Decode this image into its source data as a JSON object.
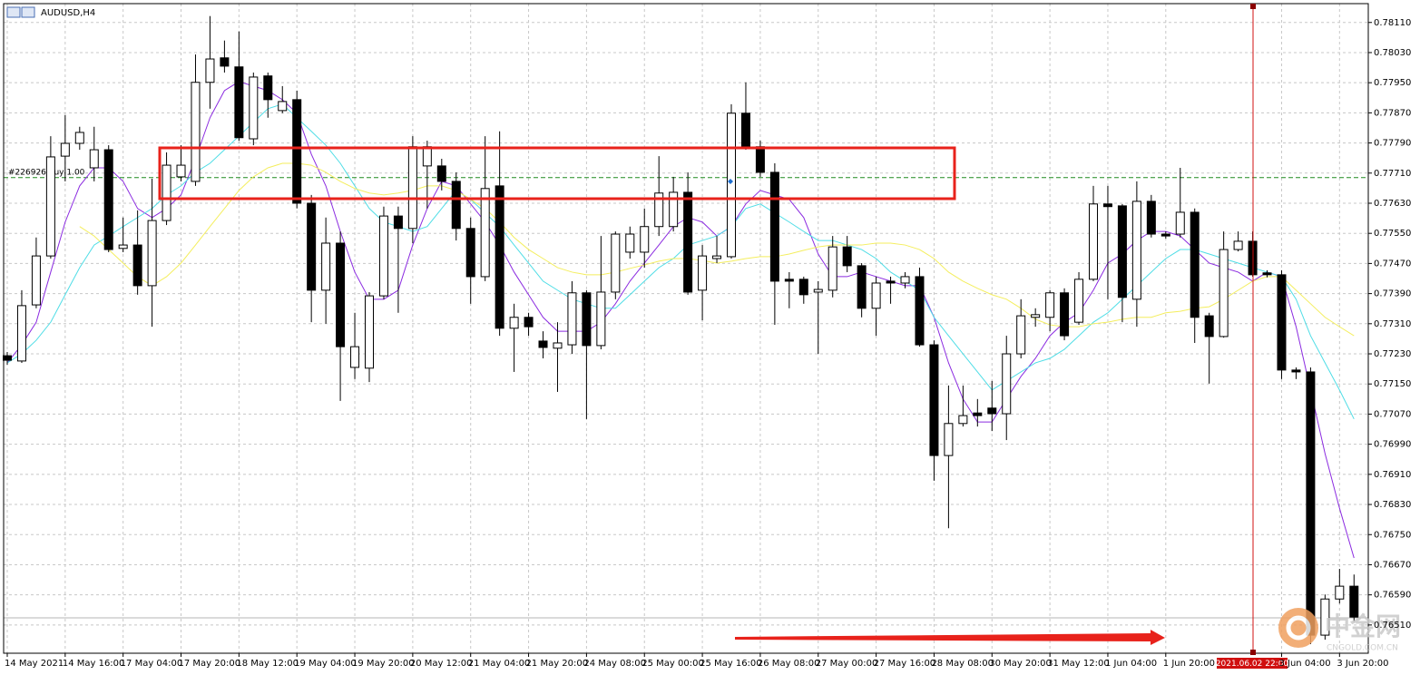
{
  "chart_data": {
    "type": "candlestick",
    "title": "AUDUSD,H4",
    "categories": [
      "14 May 2021",
      null,
      null,
      null,
      "14 May 16:00",
      null,
      null,
      null,
      "17 May 04:00",
      null,
      null,
      null,
      "17 May 20:00",
      null,
      null,
      null,
      "18 May 12:00",
      null,
      null,
      null,
      "19 May 04:00",
      null,
      null,
      null,
      "19 May 20:00",
      null,
      null,
      null,
      "20 May 12:00",
      null,
      null,
      null,
      "21 May 04:00",
      null,
      null,
      null,
      "21 May 20:00",
      null,
      null,
      null,
      "24 May 08:00",
      null,
      null,
      null,
      "25 May 00:00",
      null,
      null,
      null,
      "25 May 16:00",
      null,
      null,
      null,
      "26 May 08:00",
      null,
      null,
      null,
      "27 May 00:00",
      null,
      null,
      null,
      "27 May 16:00",
      null,
      null,
      null,
      "28 May 08:00",
      null,
      null,
      null,
      "30 May 20:00",
      null,
      null,
      null,
      "31 May 12:00",
      null,
      null,
      null,
      "1 Jun 04:00",
      null,
      null,
      null,
      "1 Jun 20:00",
      null,
      null,
      null,
      null,
      null,
      null,
      null,
      "3 Jun 04:00",
      null,
      null,
      null,
      "3 Jun 20:00",
      null
    ],
    "open": [
      0.77225,
      0.77211,
      0.7736,
      0.7749,
      0.77755,
      0.77789,
      0.77724,
      0.77772,
      0.7751,
      0.77519,
      0.77411,
      0.77584,
      0.777,
      0.77688,
      0.77951,
      0.78016,
      0.77992,
      0.77801,
      0.77968,
      0.77876,
      0.77905,
      0.7763,
      0.77399,
      0.77524,
      0.77194,
      0.77192,
      0.77384,
      0.77596,
      0.77563,
      0.77729,
      0.77729,
      0.77688,
      0.77563,
      0.77435,
      0.77676,
      0.77298,
      0.77327,
      0.77264,
      0.77245,
      0.77254,
      0.77392,
      0.77252,
      0.77394,
      0.775,
      0.775,
      0.77568,
      0.77568,
      0.77659,
      0.77399,
      0.77483,
      0.77488,
      0.77869,
      0.7778,
      0.77712,
      0.77428,
      0.77428,
      0.77394,
      0.77399,
      0.77514,
      0.77464,
      0.77351,
      0.77423,
      0.77418,
      0.77435,
      0.77254,
      0.7696,
      0.77045,
      0.77073,
      0.77086,
      0.77071,
      0.7723,
      0.77327,
      0.77327,
      0.77392,
      0.77314,
      0.77428,
      0.77628,
      0.77623,
      0.77375,
      0.77635,
      0.77548,
      0.77548,
      0.77606,
      0.77331,
      0.77276,
      0.77507,
      0.77529,
      0.77445,
      0.7744,
      0.77187,
      0.77182,
      0.76483,
      0.76579,
      0.76613
    ],
    "high": [
      0.77235,
      0.77399,
      0.77539,
      0.77808,
      0.77864,
      0.77833,
      0.77833,
      0.77784,
      0.77592,
      0.77611,
      0.77695,
      0.77765,
      0.77784,
      0.78025,
      0.78127,
      0.78062,
      0.78086,
      0.77977,
      0.77977,
      0.77941,
      0.77929,
      0.77652,
      0.77592,
      0.77555,
      0.77339,
      0.77394,
      0.77621,
      0.77621,
      0.77808,
      0.77796,
      0.77748,
      0.77712,
      0.77592,
      0.77808,
      0.77821,
      0.77363,
      0.77339,
      0.7729,
      0.77314,
      0.77423,
      0.77399,
      0.77543,
      0.77555,
      0.77568,
      0.77616,
      0.77755,
      0.777,
      0.77712,
      0.77519,
      0.77543,
      0.77893,
      0.77951,
      0.77796,
      0.77736,
      0.77447,
      0.77435,
      0.77423,
      0.77543,
      0.77543,
      0.77471,
      0.77435,
      0.77435,
      0.77447,
      0.77459,
      0.77266,
      0.77146,
      0.77146,
      0.7711,
      0.77158,
      0.77278,
      0.77375,
      0.77351,
      0.77399,
      0.77404,
      0.77447,
      0.77676,
      0.77676,
      0.77628,
      0.77688,
      0.77652,
      0.77555,
      0.77724,
      0.77616,
      0.77339,
      0.77555,
      0.77555,
      0.77555,
      0.77452,
      0.77452,
      0.77194,
      0.77194,
      0.76591,
      0.76659,
      0.76644
    ],
    "low": [
      0.77201,
      0.77206,
      0.77351,
      0.77483,
      0.77688,
      0.77772,
      0.77688,
      0.775,
      0.775,
      0.77387,
      0.77302,
      0.77572,
      0.77688,
      0.77676,
      0.77881,
      0.77977,
      0.77796,
      0.77784,
      0.77857,
      0.77869,
      0.77616,
      0.77314,
      0.7731,
      0.77105,
      0.77163,
      0.77155,
      0.77375,
      0.77339,
      0.77524,
      0.77616,
      0.77664,
      0.77531,
      0.77363,
      0.77423,
      0.77278,
      0.77182,
      0.77278,
      0.77218,
      0.77129,
      0.7723,
      0.77057,
      0.77242,
      0.77375,
      0.77483,
      0.77459,
      0.77543,
      0.77555,
      0.77387,
      0.77319,
      0.77471,
      0.77483,
      0.77772,
      0.777,
      0.77307,
      0.77351,
      0.77363,
      0.7723,
      0.7738,
      0.77447,
      0.77327,
      0.77278,
      0.77363,
      0.77404,
      0.77249,
      0.76893,
      0.76767,
      0.77037,
      0.77037,
      0.77025,
      0.77001,
      0.77218,
      0.77302,
      0.7729,
      0.77266,
      0.77307,
      0.77423,
      0.77375,
      0.77314,
      0.77302,
      0.77539,
      0.77536,
      0.77539,
      0.77259,
      0.77151,
      0.77273,
      0.77502,
      0.77435,
      0.77433,
      0.77163,
      0.77163,
      0.76459,
      0.76471,
      0.76567,
      0.76519
    ],
    "close": [
      0.77213,
      0.77358,
      0.7749,
      0.77753,
      0.77789,
      0.77818,
      0.77772,
      0.77507,
      0.77519,
      0.77411,
      0.77584,
      0.77731,
      0.77731,
      0.77951,
      0.78013,
      0.77994,
      0.77804,
      0.77965,
      0.77905,
      0.779,
      0.7763,
      0.77399,
      0.77524,
      0.77249,
      0.77249,
      0.77384,
      0.77596,
      0.77563,
      0.7778,
      0.7778,
      0.77688,
      0.77563,
      0.77435,
      0.77669,
      0.77298,
      0.77327,
      0.77302,
      0.77247,
      0.77259,
      0.77392,
      0.77252,
      0.77394,
      0.77548,
      0.77548,
      0.77568,
      0.77657,
      0.77659,
      0.77394,
      0.7749,
      0.7749,
      0.77869,
      0.7778,
      0.77712,
      0.77423,
      0.77423,
      0.77387,
      0.77401,
      0.77514,
      0.77464,
      0.77351,
      0.77418,
      0.77418,
      0.77435,
      0.77254,
      0.7696,
      0.77045,
      0.77066,
      0.77066,
      0.77071,
      0.7723,
      0.77331,
      0.77334,
      0.77392,
      0.77278,
      0.77428,
      0.77628,
      0.77621,
      0.7738,
      0.77635,
      0.77548,
      0.77543,
      0.77606,
      0.77327,
      0.77276,
      0.77507,
      0.77529,
      0.7744,
      0.7744,
      0.77187,
      0.77182,
      0.76483,
      0.76579,
      0.76613,
      0.76531
    ],
    "bull_color": "#ffffff",
    "bear_color": "#000000",
    "lines": [
      {
        "color": "#8b2be0",
        "values": [
          0.77206,
          0.77254,
          0.77314,
          0.77447,
          0.7758,
          0.77676,
          0.77724,
          0.77724,
          0.77688,
          0.77616,
          0.77592,
          0.77616,
          0.77652,
          0.77748,
          0.77857,
          0.77929,
          0.77953,
          0.77941,
          0.77929,
          0.77905,
          0.77869,
          0.7776,
          0.77676,
          0.77555,
          0.77447,
          0.77375,
          0.77375,
          0.77399,
          0.77519,
          0.77616,
          0.77688,
          0.77676,
          0.77628,
          0.7758,
          0.77519,
          0.77447,
          0.77387,
          0.77327,
          0.7729,
          0.7729,
          0.7729,
          0.77314,
          0.77363,
          0.77423,
          0.77471,
          0.77519,
          0.77568,
          0.77592,
          0.7758,
          0.77543,
          0.77568,
          0.77628,
          0.77664,
          0.77652,
          0.7764,
          0.77592,
          0.77495,
          0.77435,
          0.77435,
          0.77447,
          0.77435,
          0.77423,
          0.77411,
          0.77411,
          0.77327,
          0.77206,
          0.7711,
          0.77049,
          0.77049,
          0.7711,
          0.7717,
          0.77218,
          0.77278,
          0.77314,
          0.77339,
          0.77399,
          0.77471,
          0.77495,
          0.77531,
          0.77555,
          0.77555,
          0.77543,
          0.77507,
          0.77471,
          0.77459,
          0.77447,
          0.77423,
          0.77447,
          0.77435,
          0.77302,
          0.77134,
          0.76965,
          0.7682,
          0.76688
        ]
      },
      {
        "color": "#4fdde6",
        "values": [
          0.77206,
          0.7723,
          0.77266,
          0.77314,
          0.77387,
          0.77459,
          0.77519,
          0.77543,
          0.77568,
          0.77592,
          0.77616,
          0.77652,
          0.77676,
          0.77712,
          0.77736,
          0.77772,
          0.77808,
          0.77845,
          0.77881,
          0.77893,
          0.77857,
          0.77821,
          0.77784,
          0.77736,
          0.77676,
          0.77616,
          0.7758,
          0.77568,
          0.77555,
          0.77568,
          0.77616,
          0.77664,
          0.7764,
          0.77604,
          0.77568,
          0.77519,
          0.77471,
          0.77423,
          0.77399,
          0.77375,
          0.77363,
          0.77351,
          0.77351,
          0.77387,
          0.77423,
          0.77459,
          0.77483,
          0.77519,
          0.77531,
          0.77543,
          0.77568,
          0.77616,
          0.77628,
          0.77604,
          0.7758,
          0.77555,
          0.77531,
          0.77531,
          0.77519,
          0.77507,
          0.77483,
          0.77447,
          0.77423,
          0.77399,
          0.77327,
          0.77278,
          0.7723,
          0.77182,
          0.77134,
          0.77158,
          0.77182,
          0.77206,
          0.77218,
          0.77242,
          0.77278,
          0.77314,
          0.77339,
          0.77375,
          0.77411,
          0.77447,
          0.77483,
          0.77507,
          0.77507,
          0.77495,
          0.77483,
          0.77471,
          0.77459,
          0.77447,
          0.77435,
          0.77375,
          0.77278,
          0.77206,
          0.77134,
          0.77057
        ]
      },
      {
        "color": "#f4ee5e",
        "values": [
          null,
          null,
          null,
          null,
          null,
          0.77568,
          0.77543,
          0.77507,
          0.77471,
          0.77435,
          0.77411,
          0.77435,
          0.77471,
          0.77519,
          0.77568,
          0.77616,
          0.77664,
          0.777,
          0.77724,
          0.77736,
          0.77736,
          0.77731,
          0.77712,
          0.77688,
          0.77669,
          0.77657,
          0.77652,
          0.77657,
          0.77664,
          0.77676,
          0.77676,
          0.77664,
          0.7764,
          0.77616,
          0.7758,
          0.77539,
          0.77507,
          0.77483,
          0.77459,
          0.77447,
          0.7744,
          0.7744,
          0.77447,
          0.77457,
          0.77466,
          0.77476,
          0.77483,
          0.77483,
          0.77478,
          0.77471,
          0.77476,
          0.77483,
          0.77488,
          0.77488,
          0.77495,
          0.77505,
          0.77514,
          0.77519,
          0.77519,
          0.77519,
          0.77524,
          0.77524,
          0.77519,
          0.77507,
          0.77483,
          0.77447,
          0.77423,
          0.77404,
          0.77387,
          0.77375,
          0.77351,
          0.77322,
          0.77307,
          0.77302,
          0.77302,
          0.7731,
          0.77314,
          0.77322,
          0.77327,
          0.77327,
          0.77339,
          0.77343,
          0.77351,
          0.77355,
          0.77375,
          0.77399,
          0.77423,
          0.77435,
          0.77435,
          0.77399,
          0.77363,
          0.77327,
          0.77302,
          0.77278
        ]
      }
    ],
    "ylim": [
      0.76435,
      0.7816
    ],
    "yticks": [
      {
        "value": 0.7811,
        "label": "0.78110"
      },
      {
        "value": 0.7803,
        "label": "0.78030"
      },
      {
        "value": 0.7795,
        "label": "0.77950"
      },
      {
        "value": 0.7787,
        "label": "0.77870"
      },
      {
        "value": 0.7779,
        "label": "0.77790"
      },
      {
        "value": 0.7771,
        "label": "0.77710"
      },
      {
        "value": 0.7763,
        "label": "0.77630"
      },
      {
        "value": 0.7755,
        "label": "0.77550"
      },
      {
        "value": 0.7747,
        "label": "0.77470"
      },
      {
        "value": 0.7739,
        "label": "0.77390"
      },
      {
        "value": 0.7731,
        "label": "0.77310"
      },
      {
        "value": 0.7723,
        "label": "0.77230"
      },
      {
        "value": 0.7715,
        "label": "0.77150"
      },
      {
        "value": 0.7707,
        "label": "0.77070"
      },
      {
        "value": 0.7699,
        "label": "0.76990"
      },
      {
        "value": 0.7691,
        "label": "0.76910"
      },
      {
        "value": 0.7683,
        "label": "0.76830"
      },
      {
        "value": 0.7675,
        "label": "0.76750"
      },
      {
        "value": 0.7667,
        "label": "0.76670"
      },
      {
        "value": 0.7659,
        "label": "0.76590"
      },
      {
        "value": 0.7651,
        "label": "0.76510"
      }
    ],
    "grid": true,
    "order": {
      "label": "#226926 buy 1.00",
      "price": 0.77698,
      "color": "#1f8a1f"
    },
    "crosshair_label": "2021.06.02 22:00",
    "watermark": {
      "name": "中金网",
      "site": "CNGOLD.COM.CN"
    }
  }
}
